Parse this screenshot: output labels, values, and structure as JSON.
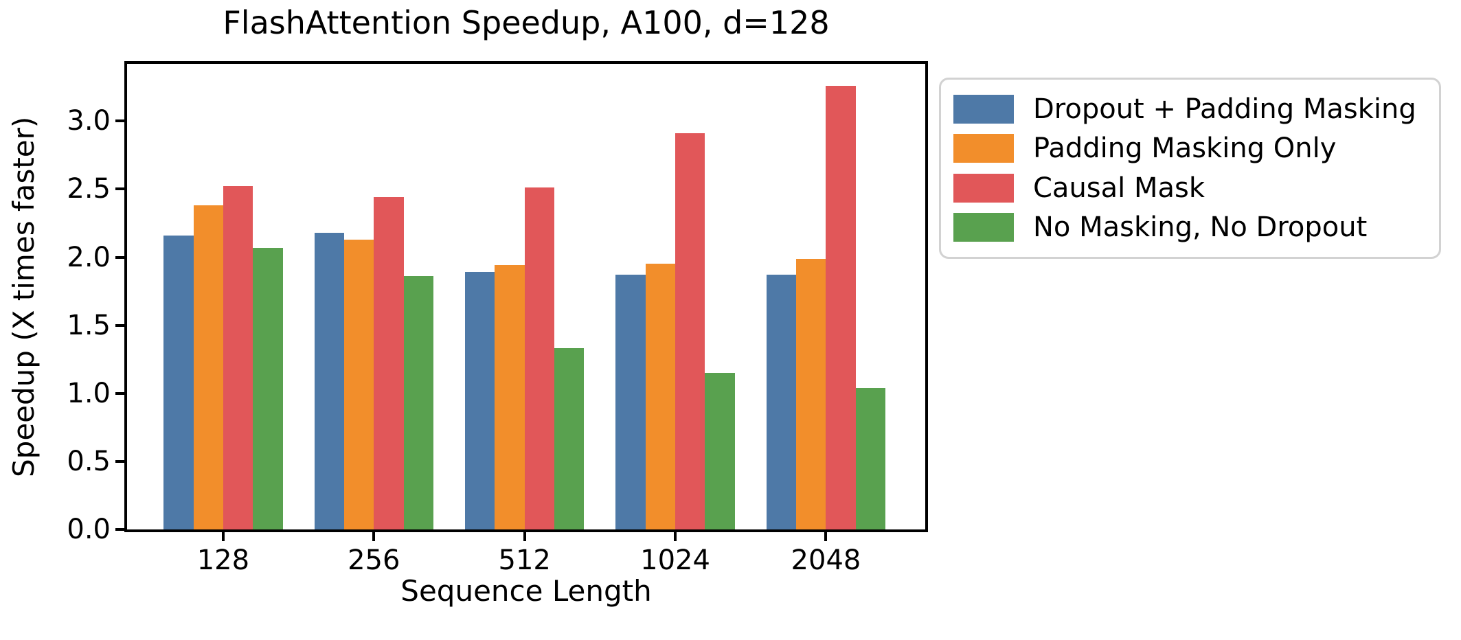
{
  "chart_data": {
    "type": "bar",
    "title": "FlashAttention Speedup, A100, d=128",
    "xlabel": "Sequence Length",
    "ylabel": "Speedup (X times faster)",
    "categories": [
      "128",
      "256",
      "512",
      "1024",
      "2048"
    ],
    "series": [
      {
        "name": "Dropout + Padding Masking",
        "color": "#4E79A7",
        "values": [
          2.16,
          2.18,
          1.89,
          1.87,
          1.87
        ]
      },
      {
        "name": "Padding Masking Only",
        "color": "#F28E2B",
        "values": [
          2.38,
          2.13,
          1.94,
          1.95,
          1.99
        ]
      },
      {
        "name": "Causal Mask",
        "color": "#E15759",
        "values": [
          2.52,
          2.44,
          2.51,
          2.91,
          3.26
        ]
      },
      {
        "name": "No Masking, No Dropout",
        "color": "#59A14F",
        "values": [
          2.07,
          1.86,
          1.33,
          1.15,
          1.04
        ]
      }
    ],
    "y_ticks": [
      "0.0",
      "0.5",
      "1.0",
      "1.5",
      "2.0",
      "2.5",
      "3.0"
    ],
    "ylim": [
      0,
      3.42
    ],
    "grid": false,
    "legend_position": "outside-right",
    "axis_color": "#000000",
    "background_color": "#ffffff"
  }
}
